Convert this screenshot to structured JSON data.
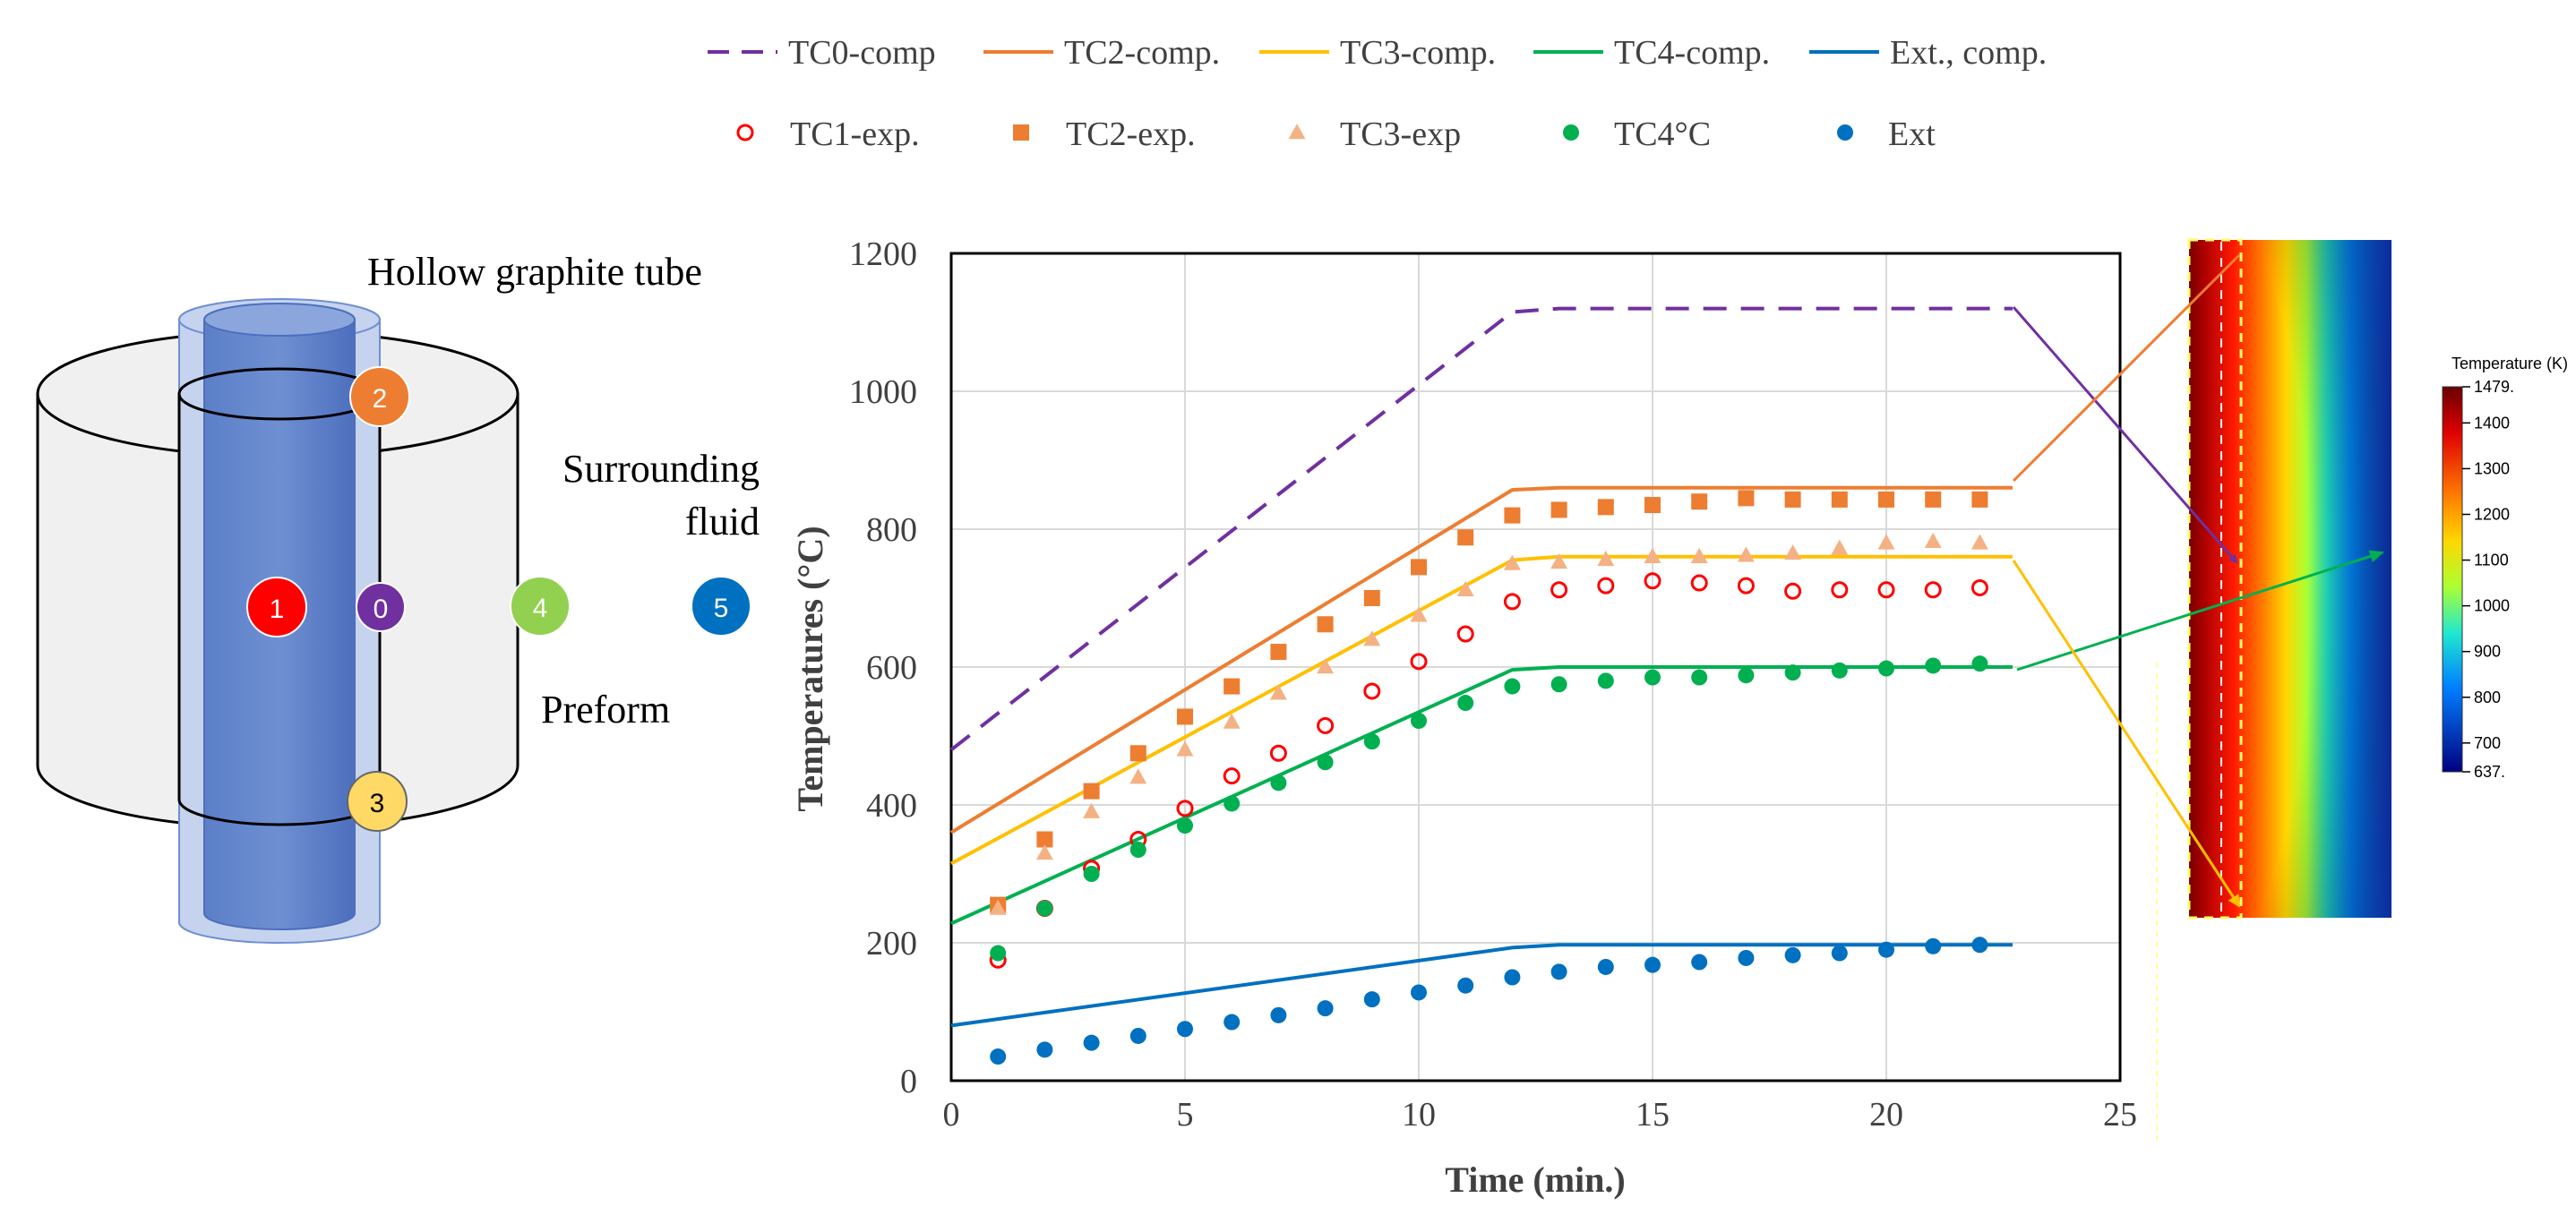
{
  "schematic": {
    "labels": {
      "tube": "Hollow graphite tube",
      "fluid_line1": "Surrounding",
      "fluid_line2": "fluid",
      "preform": "Preform"
    },
    "markers": [
      {
        "id": "1",
        "color": "#ff0000"
      },
      {
        "id": "0",
        "color": "#7030a0"
      },
      {
        "id": "2",
        "color": "#ed7d31"
      },
      {
        "id": "3",
        "color": "#ffd966"
      },
      {
        "id": "4",
        "color": "#92d050"
      },
      {
        "id": "5",
        "color": "#0070c0"
      }
    ]
  },
  "chart_data": {
    "type": "line",
    "title": "",
    "xlabel": "Time (min.)",
    "ylabel": "Temperatures  (°C)",
    "xlim": [
      0,
      25
    ],
    "ylim": [
      0,
      1200
    ],
    "xticks": [
      0,
      5,
      10,
      15,
      20,
      25
    ],
    "yticks": [
      0,
      200,
      400,
      600,
      800,
      1000,
      1200
    ],
    "grid": true,
    "legend_position": "top",
    "lines": [
      {
        "name": "TC0-comp",
        "color": "#7030a0",
        "dash": true,
        "x": [
          0,
          12,
          13,
          22.7
        ],
        "y": [
          480,
          1115,
          1120,
          1120
        ]
      },
      {
        "name": "TC2-comp.",
        "color": "#ed7d31",
        "dash": false,
        "x": [
          0,
          12,
          13,
          22.7
        ],
        "y": [
          360,
          857,
          860,
          860
        ]
      },
      {
        "name": "TC3-comp.",
        "color": "#ffc000",
        "dash": false,
        "x": [
          0,
          12,
          13,
          22.7
        ],
        "y": [
          315,
          755,
          760,
          760
        ]
      },
      {
        "name": "TC4-comp.",
        "color": "#00b050",
        "dash": false,
        "x": [
          0,
          12,
          13,
          22.7
        ],
        "y": [
          228,
          596,
          600,
          600
        ]
      },
      {
        "name": "Ext., comp.",
        "color": "#0070c0",
        "dash": false,
        "x": [
          0,
          12,
          13,
          22.7
        ],
        "y": [
          80,
          193,
          197,
          197
        ]
      }
    ],
    "points": [
      {
        "name": "TC1-exp.",
        "color": "#ff0000",
        "marker": "circle-open",
        "x": [
          1,
          2,
          3,
          4,
          5,
          6,
          7,
          8,
          9,
          10,
          11,
          12,
          13,
          14,
          15,
          16,
          17,
          18,
          19,
          20,
          21,
          22
        ],
        "y": [
          175,
          250,
          308,
          350,
          395,
          442,
          475,
          515,
          565,
          608,
          648,
          695,
          712,
          718,
          725,
          722,
          718,
          710,
          712,
          712,
          712,
          715
        ]
      },
      {
        "name": "TC2-exp.",
        "color": "#ed7d31",
        "marker": "square",
        "x": [
          1,
          2,
          3,
          4,
          5,
          6,
          7,
          8,
          9,
          10,
          11,
          12,
          13,
          14,
          15,
          16,
          17,
          18,
          19,
          20,
          21,
          22
        ],
        "y": [
          255,
          350,
          420,
          475,
          528,
          572,
          622,
          662,
          700,
          745,
          788,
          820,
          828,
          832,
          835,
          840,
          845,
          843,
          843,
          843,
          843,
          843
        ]
      },
      {
        "name": "TC3-exp",
        "color": "#f4b183",
        "marker": "triangle",
        "x": [
          1,
          2,
          3,
          4,
          5,
          6,
          7,
          8,
          9,
          10,
          11,
          12,
          13,
          14,
          15,
          16,
          17,
          18,
          19,
          20,
          21,
          22
        ],
        "y": [
          250,
          330,
          390,
          440,
          480,
          520,
          562,
          600,
          640,
          675,
          712,
          750,
          752,
          756,
          760,
          760,
          762,
          765,
          772,
          780,
          782,
          780
        ]
      },
      {
        "name": "TC4°C",
        "color": "#00b050",
        "marker": "circle",
        "x": [
          1,
          2,
          3,
          4,
          5,
          6,
          7,
          8,
          9,
          10,
          11,
          12,
          13,
          14,
          15,
          16,
          17,
          18,
          19,
          20,
          21,
          22
        ],
        "y": [
          185,
          250,
          300,
          335,
          370,
          402,
          432,
          462,
          492,
          522,
          548,
          572,
          575,
          580,
          585,
          585,
          588,
          592,
          595,
          598,
          602,
          605
        ]
      },
      {
        "name": "Ext",
        "color": "#0070c0",
        "marker": "circle",
        "x": [
          1,
          2,
          3,
          4,
          5,
          6,
          7,
          8,
          9,
          10,
          11,
          12,
          13,
          14,
          15,
          16,
          17,
          18,
          19,
          20,
          21,
          22
        ],
        "y": [
          35,
          45,
          55,
          65,
          75,
          85,
          95,
          105,
          118,
          128,
          138,
          150,
          158,
          165,
          168,
          172,
          178,
          182,
          185,
          190,
          195,
          197
        ]
      }
    ]
  },
  "colorbar": {
    "title": "Temperature (K)",
    "max_label": "1479.",
    "min_label": "637.",
    "ticks": [
      "1400",
      "1300",
      "1200",
      "1100",
      "1000",
      "900",
      "800",
      "700"
    ]
  }
}
